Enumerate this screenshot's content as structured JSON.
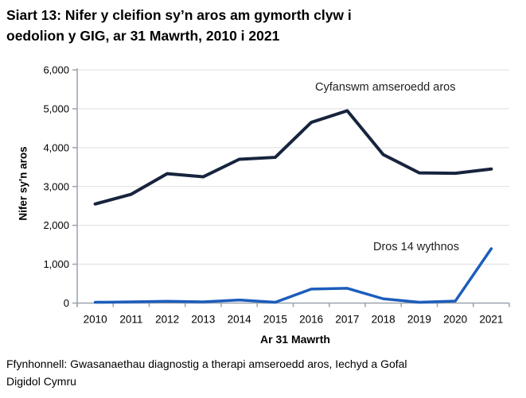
{
  "title": {
    "line1": "Siart 13: Nifer y cleifion sy’n aros am gymorth clyw i",
    "line2": "oedolion y GIG, ar 31 Mawrth, 2010 i 2021"
  },
  "chart_data": {
    "type": "line",
    "x": [
      2010,
      2011,
      2012,
      2013,
      2014,
      2015,
      2016,
      2017,
      2018,
      2019,
      2020,
      2021
    ],
    "series": [
      {
        "name": "Cyfanswm amseroedd aros",
        "color": "#17243e",
        "values": [
          2550,
          2800,
          3330,
          3250,
          3700,
          3750,
          4650,
          4950,
          3820,
          3350,
          3340,
          3450
        ]
      },
      {
        "name": "Dros 14 wythnos",
        "color": "#1c5dbc",
        "values": [
          20,
          30,
          45,
          30,
          80,
          20,
          360,
          380,
          110,
          20,
          50,
          1400
        ]
      }
    ],
    "xlabel": "Ar 31 Mawrth",
    "ylabel": "Nifer sy'n aros",
    "ylim": [
      0,
      6000
    ],
    "ytick_step": 1000,
    "ytick_labels": [
      "0",
      "1,000",
      "2,000",
      "3,000",
      "4,000",
      "5,000",
      "6,000"
    ],
    "grid": "horizontal",
    "legend": "inline-labels"
  },
  "footer": {
    "line1": "Ffynhonnell: Gwasanaethau diagnostig a therapi amseroedd aros, Iechyd a Gofal",
    "line2": "Digidol Cymru"
  },
  "colors": {
    "grid": "#dadde3",
    "axis": "#9aa2ad",
    "text": "#000000",
    "background": "#ffffff"
  }
}
